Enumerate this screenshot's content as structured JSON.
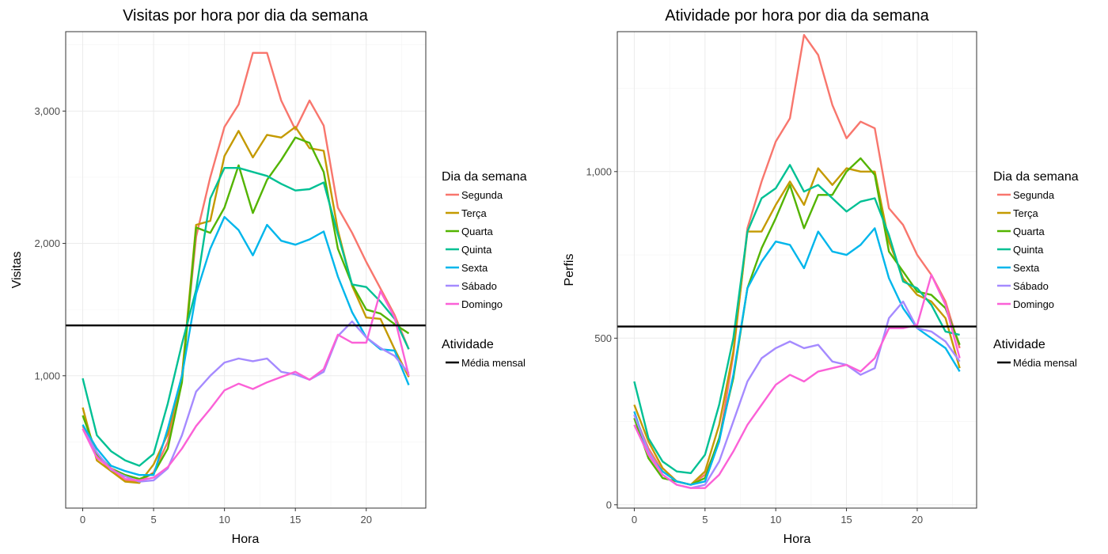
{
  "legend_titles": {
    "series": "Dia da semana",
    "reference": "Atividade"
  },
  "chart_data": [
    {
      "type": "line",
      "title": "Visitas por hora por dia da semana",
      "xlabel": "Hora",
      "ylabel": "Visitas",
      "xlim": [
        -1.2,
        24.2
      ],
      "ylim": [
        0,
        3600
      ],
      "x_ticks": [
        0,
        5,
        10,
        15,
        20
      ],
      "x_tick_labels": [
        "0",
        "5",
        "10",
        "15",
        "20"
      ],
      "y_ticks": [
        1000,
        2000,
        3000
      ],
      "y_tick_labels": [
        "1,000",
        "2,000",
        "3,000"
      ],
      "grid": true,
      "legend_position": "right",
      "x": [
        0,
        1,
        2,
        3,
        4,
        5,
        6,
        7,
        8,
        9,
        10,
        11,
        12,
        13,
        14,
        15,
        16,
        17,
        18,
        19,
        20,
        21,
        22,
        23
      ],
      "series": [
        {
          "name": "Segunda",
          "color": "#F8766D",
          "values": [
            620,
            400,
            280,
            210,
            200,
            270,
            500,
            1000,
            2050,
            2500,
            2880,
            3050,
            3440,
            3440,
            3080,
            2860,
            3080,
            2890,
            2270,
            2080,
            1860,
            1660,
            1460,
            1200
          ]
        },
        {
          "name": "Terça",
          "color": "#C49A00",
          "values": [
            760,
            360,
            280,
            200,
            190,
            330,
            560,
            1000,
            2140,
            2170,
            2660,
            2850,
            2650,
            2820,
            2800,
            2880,
            2720,
            2700,
            2100,
            1680,
            1440,
            1430,
            1200,
            990
          ]
        },
        {
          "name": "Quarta",
          "color": "#53B400",
          "values": [
            700,
            410,
            300,
            250,
            220,
            260,
            450,
            950,
            2120,
            2080,
            2270,
            2590,
            2230,
            2480,
            2630,
            2800,
            2760,
            2540,
            1960,
            1690,
            1500,
            1470,
            1390,
            1320
          ]
        },
        {
          "name": "Quinta",
          "color": "#00C094",
          "values": [
            980,
            550,
            430,
            360,
            320,
            410,
            790,
            1240,
            1650,
            2340,
            2570,
            2570,
            2540,
            2510,
            2450,
            2400,
            2410,
            2460,
            2070,
            1690,
            1670,
            1560,
            1430,
            1200
          ]
        },
        {
          "name": "Sexta",
          "color": "#00B6EB",
          "values": [
            630,
            450,
            320,
            280,
            250,
            250,
            600,
            1000,
            1620,
            1960,
            2200,
            2100,
            1910,
            2140,
            2020,
            1990,
            2030,
            2090,
            1750,
            1480,
            1290,
            1200,
            1190,
            930
          ]
        },
        {
          "name": "Sábado",
          "color": "#A58AFF",
          "values": [
            600,
            420,
            290,
            240,
            200,
            210,
            300,
            550,
            880,
            1000,
            1100,
            1130,
            1110,
            1130,
            1030,
            1010,
            970,
            1030,
            1300,
            1410,
            1290,
            1210,
            1150,
            1020
          ]
        },
        {
          "name": "Domingo",
          "color": "#FB61D7",
          "values": [
            600,
            380,
            300,
            220,
            210,
            230,
            310,
            450,
            620,
            750,
            890,
            940,
            900,
            950,
            990,
            1030,
            970,
            1050,
            1310,
            1250,
            1250,
            1640,
            1440,
            1000
          ]
        }
      ],
      "reference_line": {
        "name": "Média mensal",
        "value": 1380,
        "color": "#000000"
      }
    },
    {
      "type": "line",
      "title": "Atividade por hora por dia da semana",
      "xlabel": "Hora",
      "ylabel": "Perfis",
      "xlim": [
        -1.2,
        24.2
      ],
      "ylim": [
        -10,
        1420
      ],
      "x_ticks": [
        0,
        5,
        10,
        15,
        20
      ],
      "x_tick_labels": [
        "0",
        "5",
        "10",
        "15",
        "20"
      ],
      "y_ticks": [
        0,
        500,
        1000
      ],
      "y_tick_labels": [
        "0",
        "500",
        "1,000"
      ],
      "grid": true,
      "legend_position": "right",
      "x": [
        0,
        1,
        2,
        3,
        4,
        5,
        6,
        7,
        8,
        9,
        10,
        11,
        12,
        13,
        14,
        15,
        16,
        17,
        18,
        19,
        20,
        21,
        22,
        23
      ],
      "series": [
        {
          "name": "Segunda",
          "color": "#F8766D",
          "values": [
            270,
            170,
            100,
            70,
            60,
            90,
            190,
            450,
            830,
            970,
            1090,
            1160,
            1410,
            1350,
            1200,
            1100,
            1150,
            1130,
            890,
            840,
            750,
            690,
            610,
            470
          ]
        },
        {
          "name": "Terça",
          "color": "#C49A00",
          "values": [
            300,
            190,
            110,
            70,
            60,
            100,
            240,
            460,
            820,
            820,
            900,
            970,
            900,
            1010,
            960,
            1010,
            1000,
            1000,
            790,
            680,
            630,
            610,
            560,
            410
          ]
        },
        {
          "name": "Quarta",
          "color": "#53B400",
          "values": [
            260,
            140,
            80,
            70,
            60,
            80,
            200,
            380,
            650,
            770,
            860,
            960,
            830,
            930,
            930,
            1000,
            1040,
            990,
            760,
            700,
            640,
            630,
            590,
            480
          ]
        },
        {
          "name": "Quinta",
          "color": "#00C094",
          "values": [
            370,
            200,
            130,
            100,
            95,
            150,
            300,
            500,
            820,
            920,
            950,
            1020,
            940,
            960,
            920,
            880,
            910,
            920,
            810,
            670,
            650,
            600,
            520,
            510
          ]
        },
        {
          "name": "Sexta",
          "color": "#00B6EB",
          "values": [
            280,
            150,
            100,
            70,
            60,
            70,
            190,
            390,
            650,
            730,
            790,
            780,
            710,
            820,
            760,
            750,
            780,
            830,
            680,
            590,
            530,
            500,
            470,
            400
          ]
        },
        {
          "name": "Sábado",
          "color": "#A58AFF",
          "values": [
            270,
            160,
            90,
            60,
            50,
            60,
            130,
            250,
            370,
            440,
            470,
            490,
            470,
            480,
            430,
            420,
            390,
            410,
            560,
            610,
            530,
            520,
            490,
            430
          ]
        },
        {
          "name": "Domingo",
          "color": "#FB61D7",
          "values": [
            240,
            150,
            90,
            60,
            50,
            50,
            90,
            160,
            240,
            300,
            360,
            390,
            370,
            400,
            410,
            420,
            400,
            440,
            530,
            530,
            540,
            690,
            600,
            440
          ]
        }
      ],
      "reference_line": {
        "name": "Média mensal",
        "value": 535,
        "color": "#000000"
      }
    }
  ]
}
